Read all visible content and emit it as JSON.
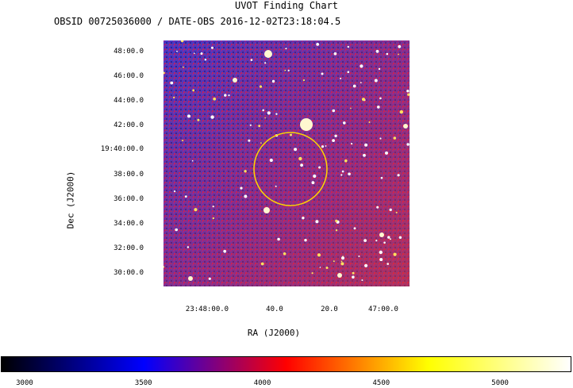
{
  "chart_data": {
    "type": "heatmap",
    "title": "UVOT Finding Chart",
    "subtitle": "OBSID 00725036000 / DATE-OBS 2016-12-02T23:18:04.5",
    "xlabel": "RA (J2000)",
    "ylabel": "Dec (J2000)",
    "x_ticks": [
      "23:48:00.0",
      "40.0",
      "20.0",
      "47:00.0"
    ],
    "y_ticks": [
      "48:00.0",
      "46:00.0",
      "44:00.0",
      "42:00.0",
      "19:40:00.0",
      "38:00.0",
      "36:00.0",
      "34:00.0",
      "32:00.0",
      "30:00.0"
    ],
    "colorbar": {
      "range": [
        2900,
        5300
      ],
      "ticks": [
        3000,
        3500,
        4000,
        4500,
        5000
      ],
      "colors": [
        "#000000",
        "#0000ff",
        "#ff0000",
        "#ffff00",
        "#ffffff"
      ]
    },
    "circle_color": "#ffd700"
  }
}
